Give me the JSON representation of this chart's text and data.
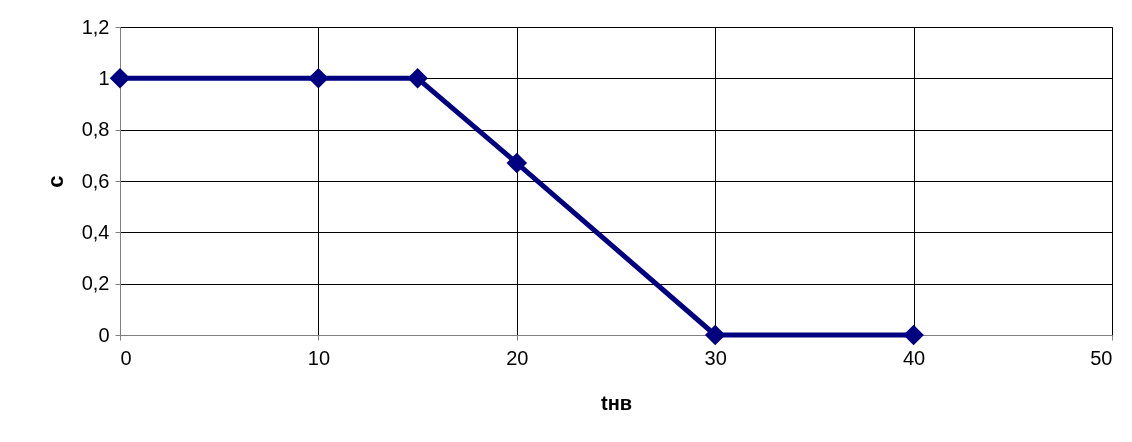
{
  "chart_data": {
    "type": "line",
    "xlabel": "tнв",
    "ylabel": "c",
    "x": [
      0,
      10,
      15,
      20,
      30,
      40
    ],
    "series": [
      {
        "color": "#000080",
        "values": [
          1,
          1,
          1,
          0.67,
          0,
          0
        ]
      }
    ],
    "xlim": [
      0,
      50
    ],
    "xticks": [
      0,
      10,
      20,
      30,
      40,
      50
    ],
    "ylim": [
      0,
      1.2
    ],
    "yticks": [
      0,
      {
        "value": 0.2,
        "label": "0,2"
      },
      {
        "value": 0.4,
        "label": "0,4"
      },
      {
        "value": 0.6,
        "label": "0,6"
      },
      {
        "value": 0.8,
        "label": "0,8"
      },
      1,
      {
        "value": 1.2,
        "label": "1,2"
      }
    ],
    "grid": true,
    "marker": "diamond",
    "line_style": "solid"
  }
}
